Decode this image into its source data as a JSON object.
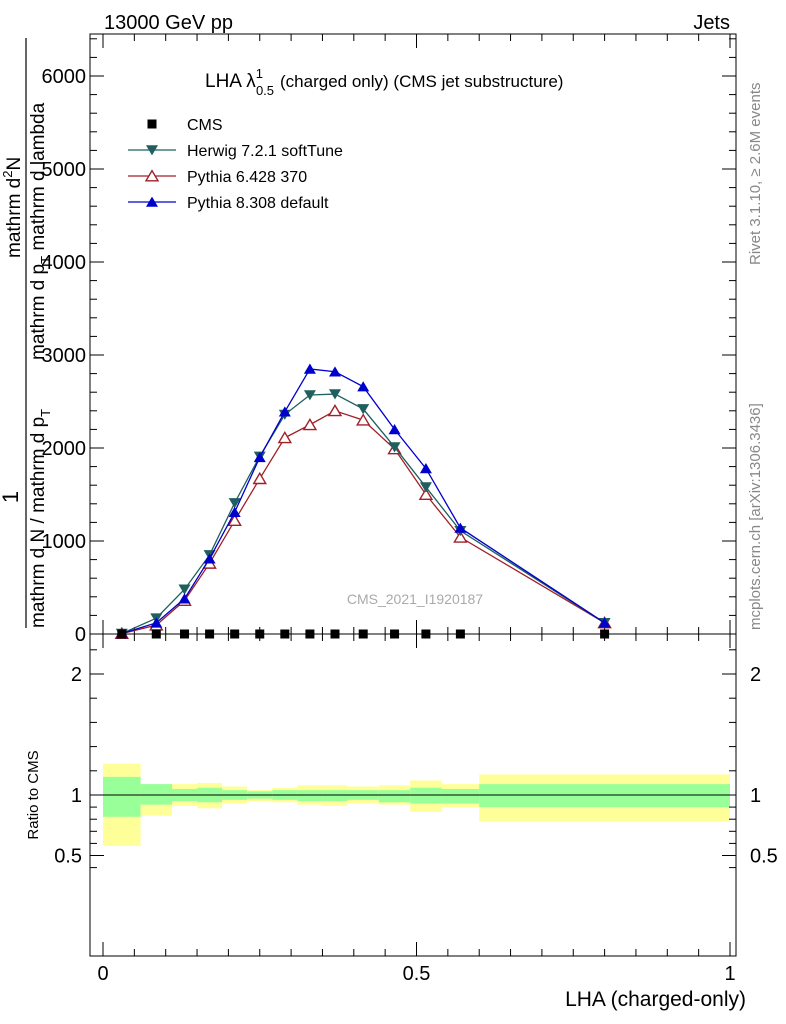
{
  "header": {
    "energy_label": "13000 GeV pp",
    "process_label": "Jets"
  },
  "side_labels": {
    "rivet": "Rivet 3.1.10, ≥ 2.6M events",
    "mcplots": "mcplots.cern.ch [arXiv:1306.3436]"
  },
  "watermark": "CMS_2021_I1920187",
  "chart_data": [
    {
      "type": "line",
      "title": {
        "main": "LHA λ",
        "sup": "1",
        "sub": "0.5",
        "rest": "(charged only) (CMS jet substructure)"
      },
      "ylabel": {
        "one": "1",
        "den_left": "mathrm d N / mathrm d p",
        "den_sub": "T",
        "num": "mathrm d",
        "num_sup": "2",
        "num_rest": "N",
        "den_right": "mathrm d p",
        "den_right_sub": "T",
        "den_right_rest": " mathrm d lambda"
      },
      "ylim": [
        0,
        6400
      ],
      "yticks": [
        0,
        1000,
        2000,
        3000,
        4000,
        5000,
        6000
      ],
      "ytick_labels": [
        "0",
        "1000",
        "2000",
        "3000",
        "4000",
        "5000",
        "6000"
      ],
      "legend_position": "top-left",
      "x": [
        0.03,
        0.085,
        0.13,
        0.17,
        0.21,
        0.25,
        0.29,
        0.33,
        0.37,
        0.415,
        0.465,
        0.515,
        0.57,
        0.8
      ],
      "series": [
        {
          "name": "CMS",
          "color": "#000000",
          "marker": "square",
          "values": [
            0,
            0,
            0,
            0,
            0,
            0,
            0,
            0,
            0,
            0,
            0,
            0,
            0,
            0
          ]
        },
        {
          "name": "Herwig 7.2.1 softTune",
          "color": "#1f5f5f",
          "marker": "triangle-down",
          "values": [
            5,
            170,
            480,
            850,
            1410,
            1910,
            2360,
            2570,
            2580,
            2420,
            2010,
            1580,
            1110,
            120
          ]
        },
        {
          "name": "Pythia 6.428 370",
          "color": "#a0202a",
          "marker": "triangle-up-open",
          "values": [
            5,
            95,
            360,
            760,
            1220,
            1670,
            2110,
            2250,
            2400,
            2300,
            1990,
            1500,
            1040,
            120
          ]
        },
        {
          "name": "Pythia 8.308 default",
          "color": "#0000cc",
          "marker": "triangle-up",
          "values": [
            5,
            120,
            380,
            810,
            1310,
            1900,
            2390,
            2850,
            2820,
            2660,
            2200,
            1780,
            1140,
            120
          ]
        }
      ]
    },
    {
      "type": "area",
      "ylabel": "Ratio to CMS",
      "ylim": [
        0.35,
        2.3
      ],
      "yticks": [
        0.5,
        1,
        2
      ],
      "ytick_labels": [
        "0.5",
        "1",
        "2"
      ],
      "xlabel": "LHA (charged-only)",
      "xlim": [
        0,
        1
      ],
      "xticks": [
        0,
        0.5,
        1
      ],
      "xtick_labels": [
        "0",
        "0.5",
        "1"
      ],
      "bin_edges": [
        0,
        0.06,
        0.11,
        0.15,
        0.19,
        0.23,
        0.27,
        0.31,
        0.35,
        0.39,
        0.44,
        0.49,
        0.54,
        0.6,
        1.0
      ],
      "band_inner": {
        "color": "#99ff99",
        "lower": [
          0.82,
          0.92,
          0.95,
          0.94,
          0.96,
          0.97,
          0.96,
          0.95,
          0.95,
          0.96,
          0.94,
          0.93,
          0.93,
          0.9
        ],
        "upper": [
          1.15,
          1.09,
          1.05,
          1.06,
          1.04,
          1.03,
          1.04,
          1.04,
          1.04,
          1.04,
          1.04,
          1.06,
          1.05,
          1.09
        ]
      },
      "band_outer": {
        "color": "#ffff99",
        "lower": [
          0.58,
          0.83,
          0.91,
          0.89,
          0.93,
          0.95,
          0.94,
          0.92,
          0.91,
          0.93,
          0.92,
          0.86,
          0.9,
          0.78
        ],
        "upper": [
          1.26,
          1.08,
          1.09,
          1.1,
          1.07,
          1.04,
          1.06,
          1.08,
          1.08,
          1.07,
          1.08,
          1.12,
          1.09,
          1.17
        ]
      },
      "reference_line": 1
    }
  ]
}
